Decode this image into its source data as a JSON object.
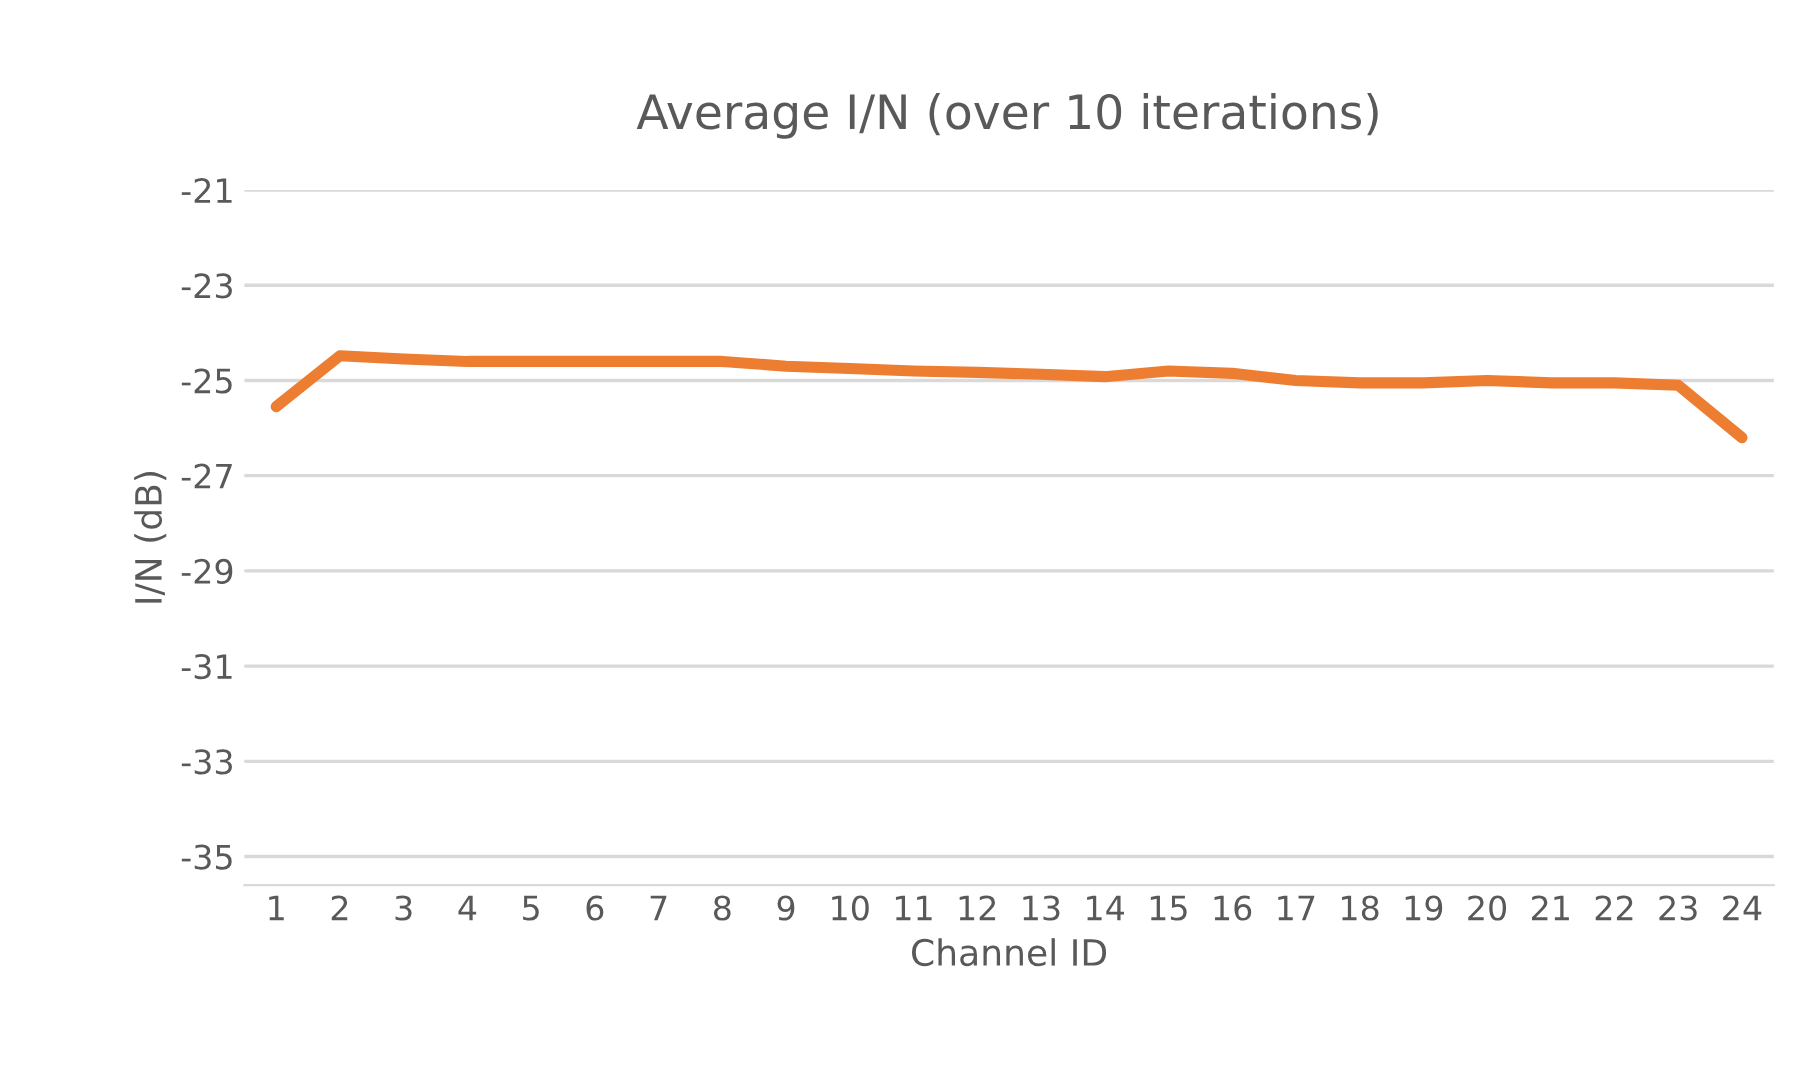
{
  "chart_data": {
    "type": "line",
    "title": "Average I/N (over 10 iterations)",
    "xlabel": "Channel ID",
    "ylabel": "I/N (dB)",
    "categories": [
      "1",
      "2",
      "3",
      "4",
      "5",
      "6",
      "7",
      "8",
      "9",
      "10",
      "11",
      "12",
      "13",
      "14",
      "15",
      "16",
      "17",
      "18",
      "19",
      "20",
      "21",
      "22",
      "23",
      "24"
    ],
    "series": [
      {
        "color": "#ed7d31",
        "values": [
          -25.55,
          -24.48,
          -24.55,
          -24.6,
          -24.6,
          -24.6,
          -24.6,
          -24.6,
          -24.7,
          -24.75,
          -24.8,
          -24.83,
          -24.87,
          -24.92,
          -24.8,
          -24.85,
          -25.0,
          -25.05,
          -25.05,
          -25.0,
          -25.05,
          -25.05,
          -25.1,
          -26.2
        ]
      }
    ],
    "ylim": [
      -35.6,
      -21
    ],
    "yticks": [
      -35,
      -33,
      -31,
      -29,
      -27,
      -25,
      -23,
      -21
    ],
    "grid": "y",
    "marker": "none",
    "line_style": "solid"
  }
}
